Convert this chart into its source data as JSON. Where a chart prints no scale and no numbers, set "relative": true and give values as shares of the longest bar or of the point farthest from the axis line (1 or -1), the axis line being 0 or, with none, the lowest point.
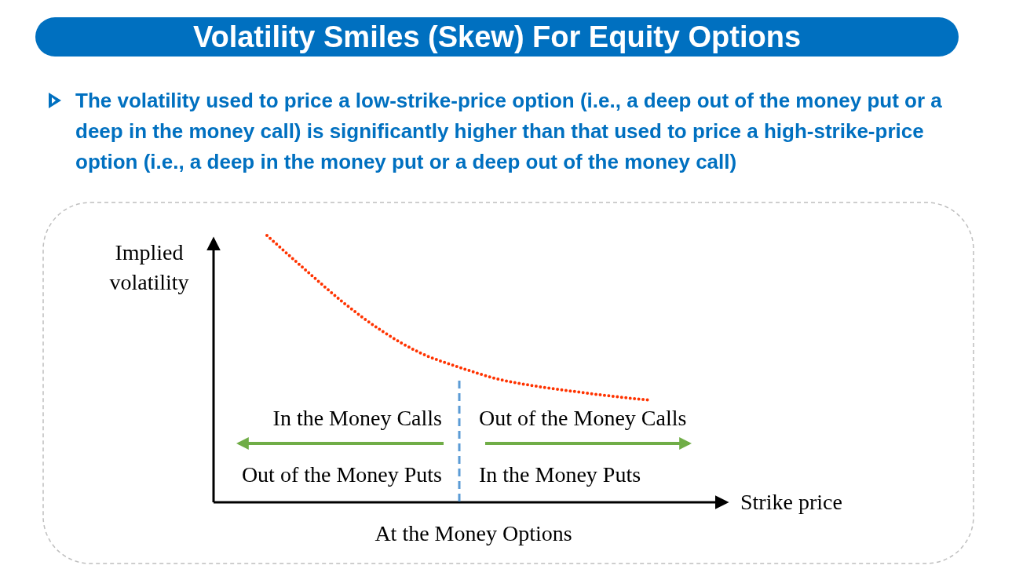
{
  "chart_data": {
    "type": "line",
    "title": "Volatility Smiles (Skew) For Equity Options",
    "subtitle": "The volatility used to price a low-strike-price option (i.e., a deep out of the money put or a deep in the money call) is significantly higher than that used to price a high-strike-price option (i.e., a deep in the money put or a deep out of the money call)",
    "xlabel": "Strike price",
    "ylabel": "Implied volatility",
    "categories": [
      null,
      null,
      null,
      null,
      null,
      null,
      null,
      null,
      null,
      null,
      null
    ],
    "relative": true,
    "series": [
      {
        "color": "#ff3300",
        "values": [
          1,
          0.871,
          0.747,
          0.641,
          0.559,
          0.506,
          0.462,
          0.435,
          0.415,
          0.397,
          0.382
        ]
      }
    ],
    "line_style": "dotted",
    "marker": "none",
    "annotations": [
      "In the Money Calls",
      "Out of the Money Calls",
      "Out of the Money Puts",
      "In the Money Puts",
      "At the Money Options"
    ]
  }
}
